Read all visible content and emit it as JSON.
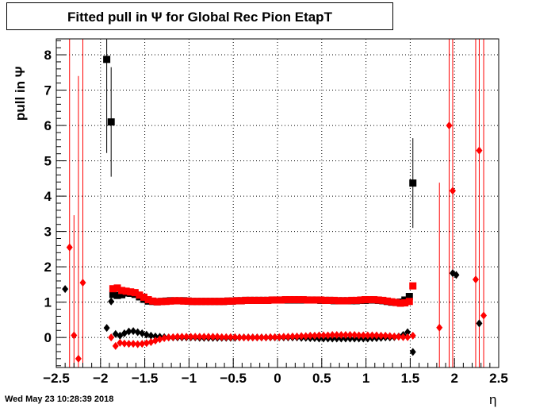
{
  "header": {
    "title": "Fitted pull in  Ψ  for Global Rec Pion EtapT"
  },
  "footer": {
    "timestamp": "Wed May 23 10:28:39 2018"
  },
  "chart_data": {
    "type": "scatter",
    "title": "Fitted pull in  Ψ  for Global Rec Pion EtapT",
    "xlabel": "η",
    "ylabel": "pull in  Ψ",
    "xlim": [
      -2.5,
      2.5
    ],
    "ylim": [
      -0.85,
      8.45
    ],
    "x_ticks": [
      -2.5,
      -2,
      -1.5,
      -1,
      -0.5,
      0,
      0.5,
      1,
      1.5,
      2,
      2.5
    ],
    "x_tick_labels": [
      "−2.5",
      "−2",
      "−1.5",
      "−1",
      "−0.5",
      "0",
      "0.5",
      "1",
      "1.5",
      "2",
      "2.5"
    ],
    "y_ticks": [
      0,
      1,
      2,
      3,
      4,
      5,
      6,
      7,
      8
    ],
    "y_tick_labels": [
      "0",
      "1",
      "2",
      "3",
      "4",
      "5",
      "6",
      "7",
      "8"
    ],
    "grid": true,
    "series": [
      {
        "marker": "square",
        "color": "#000000",
        "x": [
          -1.93,
          -1.88,
          -1.86,
          -1.81,
          -1.76,
          -1.71,
          -1.66,
          -1.61,
          -1.56,
          -1.51,
          -1.46,
          -1.41,
          -1.36,
          -1.31,
          -1.26,
          -1.21,
          -1.16,
          -1.11,
          -1.06,
          -1.01,
          -0.96,
          -0.91,
          -0.86,
          -0.81,
          -0.76,
          -0.71,
          -0.66,
          -0.61,
          -0.56,
          -0.51,
          -0.46,
          -0.41,
          -0.36,
          -0.31,
          -0.26,
          -0.21,
          -0.16,
          -0.11,
          -0.06,
          -0.01,
          0.04,
          0.09,
          0.14,
          0.19,
          0.24,
          0.29,
          0.34,
          0.39,
          0.44,
          0.49,
          0.54,
          0.59,
          0.64,
          0.69,
          0.74,
          0.79,
          0.84,
          0.89,
          0.94,
          0.99,
          1.04,
          1.09,
          1.14,
          1.19,
          1.24,
          1.29,
          1.34,
          1.39,
          1.44,
          1.49,
          1.53
        ],
        "y": [
          7.87,
          6.1,
          1.22,
          1.19,
          1.21,
          1.26,
          1.25,
          1.22,
          1.15,
          1.08,
          1.03,
          1.02,
          1.01,
          1.02,
          1.03,
          1.04,
          1.04,
          1.04,
          1.04,
          1.03,
          1.02,
          1.02,
          1.02,
          1.02,
          1.02,
          1.02,
          1.02,
          1.02,
          1.03,
          1.03,
          1.04,
          1.04,
          1.05,
          1.05,
          1.05,
          1.05,
          1.05,
          1.05,
          1.06,
          1.06,
          1.06,
          1.06,
          1.06,
          1.06,
          1.06,
          1.06,
          1.06,
          1.06,
          1.06,
          1.05,
          1.05,
          1.05,
          1.04,
          1.04,
          1.04,
          1.04,
          1.04,
          1.04,
          1.05,
          1.05,
          1.06,
          1.06,
          1.05,
          1.04,
          1.02,
          1.0,
          0.99,
          1.0,
          1.06,
          1.16,
          4.37
        ],
        "err": [
          2.65,
          1.55,
          0,
          0,
          0,
          0,
          0,
          0,
          0,
          0,
          0,
          0,
          0,
          0,
          0,
          0,
          0,
          0,
          0,
          0,
          0,
          0,
          0,
          0,
          0,
          0,
          0,
          0,
          0,
          0,
          0,
          0,
          0,
          0,
          0,
          0,
          0,
          0,
          0,
          0,
          0,
          0,
          0,
          0,
          0,
          0,
          0,
          0,
          0,
          0,
          0,
          0,
          0,
          0,
          0,
          0,
          0,
          0,
          0,
          0,
          0,
          0,
          0,
          0,
          0,
          0,
          0,
          0,
          0,
          0,
          1.27
        ]
      },
      {
        "marker": "square",
        "color": "#ff0000",
        "x": [
          -1.86,
          -1.81,
          -1.76,
          -1.71,
          -1.66,
          -1.61,
          -1.56,
          -1.51,
          -1.46,
          -1.41,
          -1.36,
          -1.31,
          -1.26,
          -1.21,
          -1.16,
          -1.11,
          -1.06,
          -1.01,
          -0.96,
          -0.91,
          -0.86,
          -0.81,
          -0.76,
          -0.71,
          -0.66,
          -0.61,
          -0.56,
          -0.51,
          -0.46,
          -0.41,
          -0.36,
          -0.31,
          -0.26,
          -0.21,
          -0.16,
          -0.11,
          -0.06,
          -0.01,
          0.04,
          0.09,
          0.14,
          0.19,
          0.24,
          0.29,
          0.34,
          0.39,
          0.44,
          0.49,
          0.54,
          0.59,
          0.64,
          0.69,
          0.74,
          0.79,
          0.84,
          0.89,
          0.94,
          0.99,
          1.04,
          1.09,
          1.14,
          1.19,
          1.24,
          1.29,
          1.34,
          1.39,
          1.44,
          1.49,
          1.53
        ],
        "y": [
          1.38,
          1.4,
          1.33,
          1.31,
          1.29,
          1.27,
          1.2,
          1.14,
          1.07,
          1.03,
          1.01,
          1.02,
          1.02,
          1.03,
          1.04,
          1.04,
          1.03,
          1.03,
          1.02,
          1.02,
          1.02,
          1.02,
          1.02,
          1.02,
          1.02,
          1.02,
          1.03,
          1.03,
          1.04,
          1.04,
          1.05,
          1.05,
          1.05,
          1.05,
          1.05,
          1.05,
          1.06,
          1.06,
          1.06,
          1.07,
          1.07,
          1.07,
          1.07,
          1.07,
          1.06,
          1.06,
          1.06,
          1.06,
          1.05,
          1.05,
          1.05,
          1.04,
          1.04,
          1.04,
          1.05,
          1.05,
          1.06,
          1.07,
          1.07,
          1.07,
          1.06,
          1.05,
          1.03,
          1.01,
          0.99,
          0.97,
          0.98,
          1.02,
          1.46
        ],
        "err": []
      },
      {
        "marker": "diamond",
        "color": "#000000",
        "x": [
          -2.4,
          -1.93,
          -1.88,
          -1.83,
          -1.78,
          -1.73,
          -1.68,
          -1.63,
          -1.58,
          -1.53,
          -1.48,
          -1.43,
          -1.38,
          -1.33,
          -1.28,
          -1.23,
          -1.18,
          -1.13,
          -1.08,
          -1.03,
          -0.98,
          -0.93,
          -0.88,
          -0.83,
          -0.78,
          -0.73,
          -0.68,
          -0.63,
          -0.58,
          -0.53,
          -0.48,
          -0.43,
          -0.38,
          -0.33,
          -0.28,
          -0.23,
          -0.18,
          -0.13,
          -0.08,
          -0.03,
          0.02,
          0.07,
          0.12,
          0.17,
          0.22,
          0.27,
          0.32,
          0.37,
          0.42,
          0.47,
          0.52,
          0.57,
          0.62,
          0.67,
          0.72,
          0.77,
          0.82,
          0.87,
          0.92,
          0.97,
          1.02,
          1.07,
          1.12,
          1.17,
          1.22,
          1.27,
          1.32,
          1.37,
          1.42,
          1.47,
          1.53,
          1.98,
          2.02,
          2.28
        ],
        "y": [
          1.37,
          0.27,
          1.02,
          0.1,
          0.05,
          0.12,
          0.17,
          0.18,
          0.15,
          0.12,
          0.08,
          0.05,
          0.03,
          0.02,
          0.01,
          0.0,
          0.0,
          0.0,
          0.0,
          0.0,
          0.0,
          0.0,
          -0.01,
          -0.01,
          -0.01,
          -0.01,
          -0.01,
          -0.01,
          -0.01,
          -0.01,
          -0.01,
          0.0,
          0.0,
          0.0,
          0.0,
          0.0,
          0.0,
          0.0,
          0.0,
          0.0,
          0.0,
          0.0,
          0.0,
          0.0,
          0.0,
          -0.01,
          -0.01,
          -0.02,
          -0.02,
          -0.03,
          -0.03,
          -0.03,
          -0.03,
          -0.03,
          -0.03,
          -0.03,
          -0.03,
          -0.03,
          -0.03,
          -0.03,
          -0.03,
          -0.02,
          -0.02,
          -0.01,
          0.0,
          0.0,
          0.01,
          0.03,
          0.07,
          0.15,
          -0.41,
          1.82,
          1.77,
          0.4
        ],
        "err": []
      },
      {
        "marker": "diamond",
        "color": "#ff0000",
        "x": [
          -2.35,
          -2.3,
          -2.25,
          -2.2,
          -1.88,
          -1.83,
          -1.78,
          -1.73,
          -1.68,
          -1.63,
          -1.58,
          -1.53,
          -1.48,
          -1.43,
          -1.38,
          -1.33,
          -1.28,
          -1.23,
          -1.18,
          -1.13,
          -1.08,
          -1.03,
          -0.98,
          -0.93,
          -0.88,
          -0.83,
          -0.78,
          -0.73,
          -0.68,
          -0.63,
          -0.58,
          -0.53,
          -0.48,
          -0.43,
          -0.38,
          -0.33,
          -0.28,
          -0.23,
          -0.18,
          -0.13,
          -0.08,
          -0.03,
          0.02,
          0.07,
          0.12,
          0.17,
          0.22,
          0.27,
          0.32,
          0.37,
          0.42,
          0.47,
          0.52,
          0.57,
          0.62,
          0.67,
          0.72,
          0.77,
          0.82,
          0.87,
          0.92,
          0.97,
          1.02,
          1.07,
          1.12,
          1.17,
          1.22,
          1.27,
          1.32,
          1.37,
          1.42,
          1.47,
          1.53,
          1.83,
          1.94,
          1.98,
          2.24,
          2.28,
          2.33
        ],
        "y": [
          2.55,
          0.06,
          -0.6,
          1.55,
          0.0,
          -0.24,
          -0.15,
          -0.17,
          -0.18,
          -0.18,
          -0.19,
          -0.18,
          -0.16,
          -0.13,
          -0.09,
          -0.05,
          -0.02,
          0.0,
          0.01,
          0.02,
          0.02,
          0.02,
          0.02,
          0.02,
          0.02,
          0.02,
          0.02,
          0.02,
          0.02,
          0.01,
          0.01,
          0.01,
          0.01,
          0.0,
          0.0,
          0.0,
          0.0,
          0.0,
          0.0,
          0.0,
          0.01,
          0.01,
          0.01,
          0.02,
          0.02,
          0.03,
          0.03,
          0.04,
          0.04,
          0.05,
          0.05,
          0.06,
          0.06,
          0.06,
          0.07,
          0.07,
          0.07,
          0.07,
          0.07,
          0.07,
          0.06,
          0.06,
          0.06,
          0.06,
          0.06,
          0.05,
          0.05,
          0.04,
          0.03,
          0.02,
          0.01,
          0.01,
          0.05,
          0.28,
          6.0,
          4.15,
          1.64,
          5.29,
          0.62
        ],
        "err": [
          8.0,
          3.4,
          8.0,
          8.0,
          0,
          0,
          0,
          0,
          0,
          0,
          0,
          0,
          0,
          0,
          0,
          0,
          0,
          0,
          0,
          0,
          0,
          0,
          0,
          0,
          0,
          0,
          0,
          0,
          0,
          0,
          0,
          0,
          0,
          0,
          0,
          0,
          0,
          0,
          0,
          0,
          0,
          0,
          0,
          0,
          0,
          0,
          0,
          0,
          0,
          0,
          0,
          0,
          0,
          0,
          0,
          0,
          0,
          0,
          0,
          0,
          0,
          0,
          0,
          0,
          0,
          0,
          0,
          0,
          0,
          0,
          0,
          0,
          0,
          4.1,
          8.0,
          8.0,
          8.0,
          8.0,
          8.0
        ]
      }
    ]
  }
}
